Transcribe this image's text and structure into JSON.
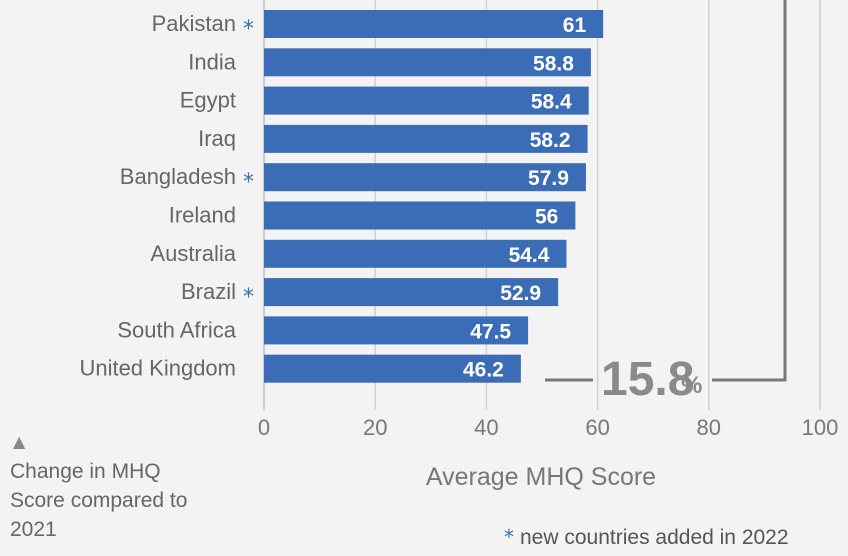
{
  "chart_data": {
    "type": "bar",
    "orientation": "horizontal",
    "categories": [
      "Pakistan",
      "India",
      "Egypt",
      "Iraq",
      "Bangladesh",
      "Ireland",
      "Australia",
      "Brazil",
      "South Africa",
      "United Kingdom"
    ],
    "values": [
      61,
      58.8,
      58.4,
      58.2,
      57.9,
      56,
      54.4,
      52.9,
      47.5,
      46.2
    ],
    "value_labels": [
      "61",
      "58.8",
      "58.4",
      "58.2",
      "57.9",
      "56",
      "54.4",
      "52.9",
      "47.5",
      "46.2"
    ],
    "new_in_2022": [
      true,
      false,
      false,
      false,
      true,
      false,
      false,
      true,
      false,
      false
    ],
    "xlabel": "Average MHQ Score",
    "xlim": [
      0,
      100
    ],
    "xticks": [
      "0",
      "20",
      "40",
      "60",
      "80",
      "100"
    ],
    "grid": true,
    "bar_color": "#3a6db5",
    "annotation": {
      "value": "15.8",
      "unit": "%"
    }
  },
  "notes": {
    "change_marker": "▲",
    "change_text": "Change in MHQ Score compared to 2021",
    "star": "*",
    "legend_text": "new countries added in 2022"
  }
}
